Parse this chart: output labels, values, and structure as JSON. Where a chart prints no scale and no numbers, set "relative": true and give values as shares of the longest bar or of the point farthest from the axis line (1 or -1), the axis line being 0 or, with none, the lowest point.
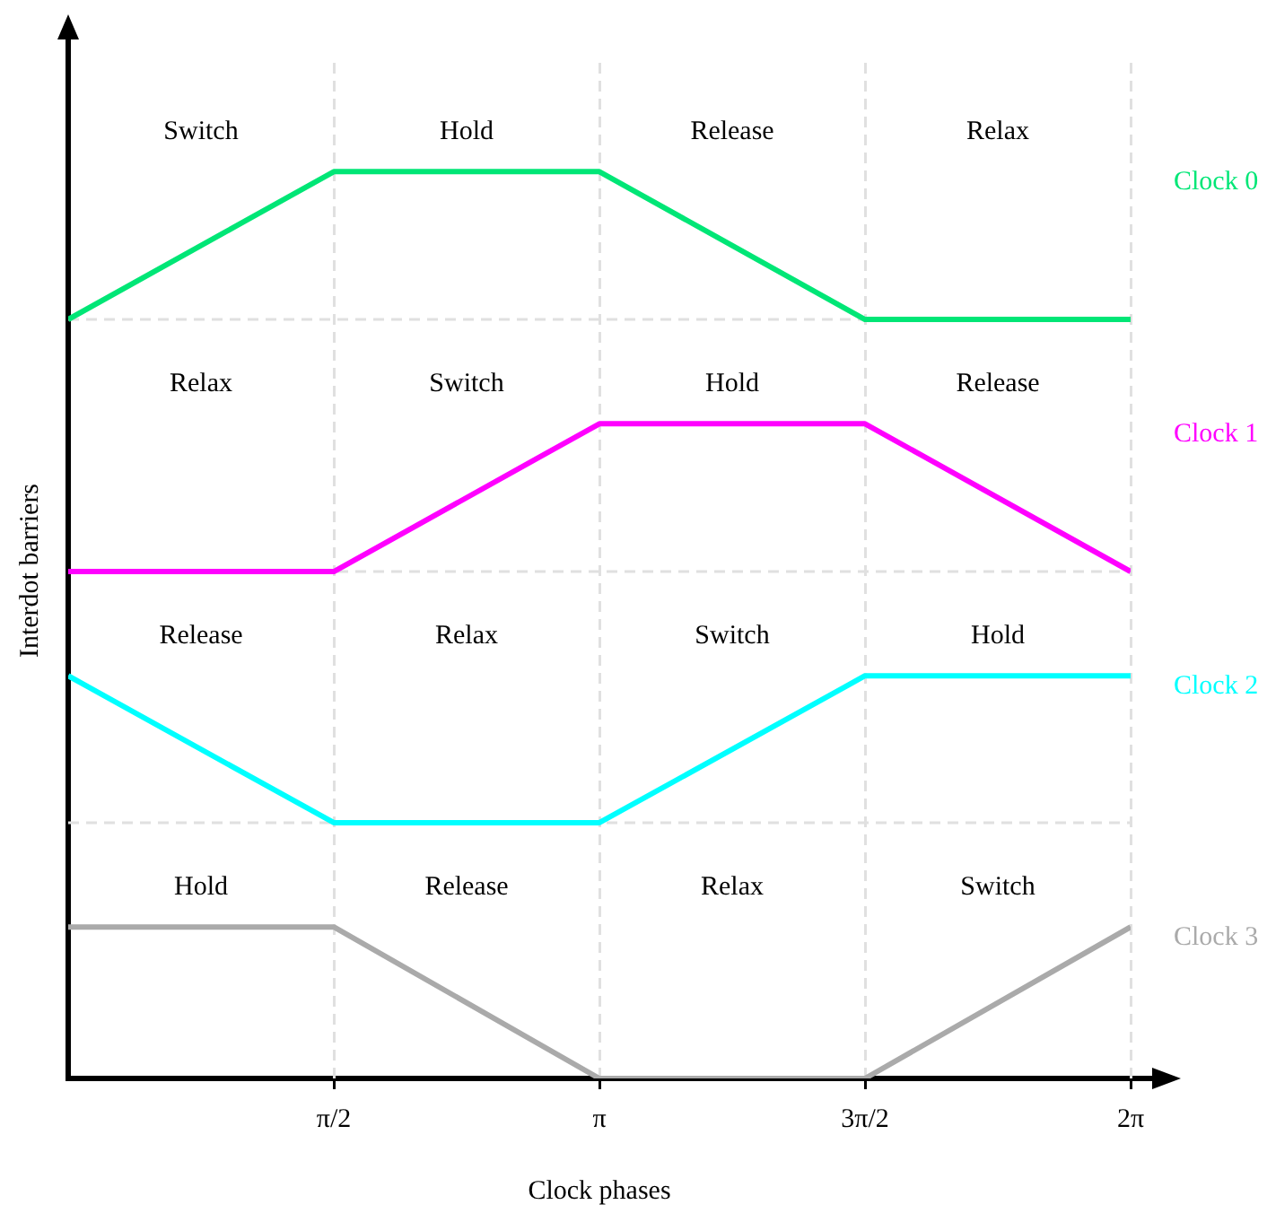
{
  "chart_data": {
    "type": "line",
    "xlabel": "Clock phases",
    "ylabel": "Interdot barriers",
    "relative": true,
    "x": [
      0,
      1.5708,
      3.1416,
      4.7124,
      6.2832
    ],
    "xlim": [
      0,
      6.2832
    ],
    "xticks": [
      {
        "value": 1.5708,
        "label": "π/2"
      },
      {
        "value": 3.1416,
        "label": "π"
      },
      {
        "value": 4.7124,
        "label": "3π/2"
      },
      {
        "value": 6.2832,
        "label": "2π"
      }
    ],
    "series": [
      {
        "name": "Clock 0",
        "color": "#00e676",
        "values": [
          0.837,
          1,
          1,
          0.837,
          0.837
        ]
      },
      {
        "name": "Clock 1",
        "color": "#ff00ff",
        "values": [
          0.559,
          0.559,
          0.722,
          0.722,
          0.559
        ]
      },
      {
        "name": "Clock 2",
        "color": "#00ffff",
        "values": [
          0.444,
          0.282,
          0.282,
          0.444,
          0.444
        ]
      },
      {
        "name": "Clock 3",
        "color": "#aaaaaa",
        "values": [
          0.167,
          0.167,
          0,
          0,
          0.167
        ]
      }
    ],
    "ref_lines": [
      {
        "axis": "y",
        "value": 0.837,
        "color": "#e0e0e0",
        "line_style": "dashed"
      },
      {
        "axis": "y",
        "value": 0.559,
        "color": "#e0e0e0",
        "line_style": "dashed"
      },
      {
        "axis": "y",
        "value": 0.282,
        "color": "#e0e0e0",
        "line_style": "dashed"
      }
    ],
    "annotations": [
      "Switch",
      "Hold",
      "Release",
      "Relax",
      "Relax",
      "Switch",
      "Hold",
      "Release",
      "Release",
      "Relax",
      "Switch",
      "Hold",
      "Hold",
      "Release",
      "Relax",
      "Switch"
    ],
    "grid": "x",
    "legend": false,
    "marker": "none",
    "line_style": "solid"
  }
}
